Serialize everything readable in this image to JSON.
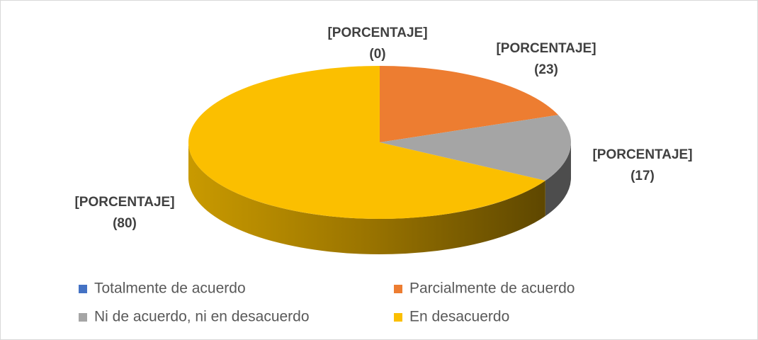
{
  "chart_data": {
    "type": "pie",
    "categories": [
      "Totalmente de acuerdo",
      "Parcialmente de acuerdo",
      "Ni de acuerdo, ni en desacuerdo",
      "En desacuerdo"
    ],
    "values": [
      0,
      23,
      17,
      80
    ],
    "value_labels": [
      "(0)",
      "(23)",
      "(17)",
      "(80)"
    ],
    "label_text": "[PORCENTAJE]",
    "colors": [
      "#4472c4",
      "#ed7d31",
      "#a5a5a5",
      "#fbbf00"
    ],
    "legend": "bottom"
  }
}
